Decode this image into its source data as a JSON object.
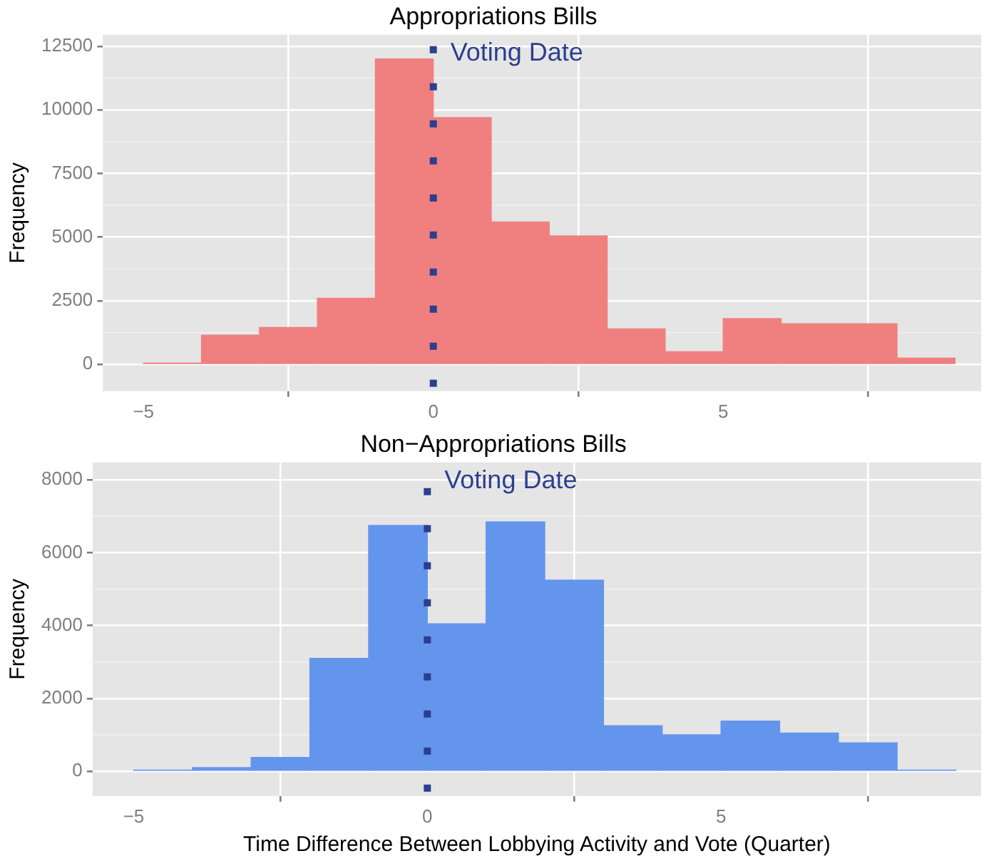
{
  "chart_data": [
    {
      "type": "histogram",
      "title": "Appropriations Bills",
      "ylabel": "Frequency",
      "bins": [
        -5,
        -4,
        -3,
        -2,
        -1,
        0,
        1,
        2,
        3,
        4,
        5,
        6,
        7,
        8,
        9
      ],
      "values": [
        50,
        1150,
        1450,
        2600,
        12000,
        9700,
        5600,
        5050,
        1400,
        500,
        1800,
        1600,
        1600,
        250
      ],
      "color": "#f08080",
      "xlim": [
        -5.7,
        9.45
      ],
      "ylim": [
        -1050,
        12950
      ],
      "xticks": [
        -5,
        0,
        5
      ],
      "yticks": [
        0,
        2500,
        5000,
        7500,
        10000,
        12500
      ],
      "grid": true,
      "ref_lines": [
        {
          "axis": "x",
          "value": 0,
          "label": "Voting Date",
          "color": "#2b3f8f",
          "line_style": "dotted"
        }
      ]
    },
    {
      "type": "histogram",
      "title": "Non−Appropriations Bills",
      "xlabel": "Time Difference Between Lobbying Activity and Vote (Quarter)",
      "ylabel": "Frequency",
      "bins": [
        -5,
        -4,
        -3,
        -2,
        -1,
        0,
        1,
        2,
        3,
        4,
        5,
        6,
        7,
        8,
        9
      ],
      "values": [
        30,
        100,
        380,
        3100,
        6750,
        4050,
        6850,
        5250,
        1250,
        1000,
        1380,
        1050,
        780,
        30
      ],
      "color": "#6495ed",
      "xlim": [
        -5.7,
        9.43
      ],
      "ylim": [
        -680,
        8480
      ],
      "xticks": [
        -5,
        0,
        5
      ],
      "yticks": [
        0,
        2000,
        4000,
        6000,
        8000
      ],
      "grid": true,
      "ref_lines": [
        {
          "axis": "x",
          "value": 0,
          "label": "Voting Date",
          "color": "#2b3f8f",
          "line_style": "dotted"
        }
      ]
    }
  ]
}
